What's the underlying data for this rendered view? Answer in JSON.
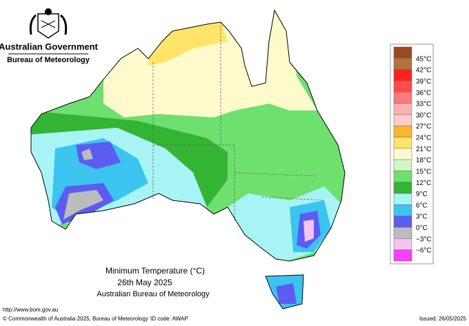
{
  "header": {
    "government": "Australian Government",
    "bureau": "Bureau of Meteorology"
  },
  "map": {
    "title": "Minimum Temperature (°C)",
    "date": "26th May 2025",
    "source": "Australian Bureau of Meteorology"
  },
  "legend": {
    "labels": [
      "45°C",
      "42°C",
      "39°C",
      "36°C",
      "33°C",
      "30°C",
      "27°C",
      "24°C",
      "21°C",
      "18°C",
      "15°C",
      "12°C",
      "9°C",
      "6°C",
      "3°C",
      "0°C",
      "−3°C",
      "−6°C"
    ],
    "colors": [
      "#9a4a1e",
      "#b2743e",
      "#ff2020",
      "#ff4a4a",
      "#ff7a7a",
      "#ffb0b0",
      "#ffcccc",
      "#ffb52e",
      "#ffe46a",
      "#fffacc",
      "#d4f5c4",
      "#6ee06e",
      "#33b533",
      "#a8f4f4",
      "#3cc4f0",
      "#5c5cf0",
      "#bcbcbc",
      "#f4c4f4",
      "#ff3cff"
    ]
  },
  "footer": {
    "url": "http://www.bom.gov.au",
    "copyright": "© Commonwealth of Australia 2025, Bureau of Meteorology",
    "id_code": "ID code: AWAP",
    "issued": "Issued: 26/05/2025"
  }
}
